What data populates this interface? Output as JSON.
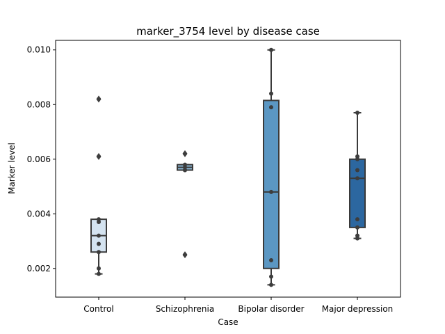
{
  "chart_data": {
    "type": "box",
    "title": "marker_3754 level by disease case",
    "xlabel": "Case",
    "ylabel": "Marker level",
    "ylim": [
      0.00095,
      0.01035
    ],
    "yticks": [
      "0.002",
      "0.004",
      "0.006",
      "0.008",
      "0.010"
    ],
    "categories": [
      "Control",
      "Schizophrenia",
      "Bipolar disorder",
      "Major depression"
    ],
    "grid": false,
    "legend": "none",
    "boxes": [
      {
        "category": "Control",
        "q1": 0.0026,
        "median": 0.0032,
        "q3": 0.0038,
        "whisker_low": 0.0018,
        "whisker_high": 0.0038,
        "fliers": [
          0.0082,
          0.0061
        ],
        "color": "#d4e3f0"
      },
      {
        "category": "Schizophrenia",
        "q1": 0.0056,
        "median": 0.0057,
        "q3": 0.0058,
        "whisker_low": 0.0056,
        "whisker_high": 0.0058,
        "fliers": [
          0.0062,
          0.0025
        ],
        "color": "#8cb9d8"
      },
      {
        "category": "Bipolar disorder",
        "q1": 0.002,
        "median": 0.0048,
        "q3": 0.00815,
        "whisker_low": 0.0014,
        "whisker_high": 0.01,
        "fliers": [],
        "color": "#5b97c3"
      },
      {
        "category": "Major depression",
        "q1": 0.0035,
        "median": 0.0053,
        "q3": 0.006,
        "whisker_low": 0.0031,
        "whisker_high": 0.0077,
        "fliers": [],
        "color": "#2c67a0"
      }
    ],
    "points": [
      [
        0.0082,
        0.0061,
        0.0038,
        0.0037,
        0.0032,
        0.0029,
        0.0026,
        0.002,
        0.0018
      ],
      [
        0.0062,
        0.0058,
        0.0057,
        0.0056,
        0.0056,
        0.0025
      ],
      [
        0.01,
        0.0084,
        0.0079,
        0.0048,
        0.0023,
        0.0017,
        0.0014
      ],
      [
        0.0077,
        0.0061,
        0.006,
        0.0056,
        0.0053,
        0.0038,
        0.0035,
        0.0032,
        0.0031
      ]
    ]
  }
}
